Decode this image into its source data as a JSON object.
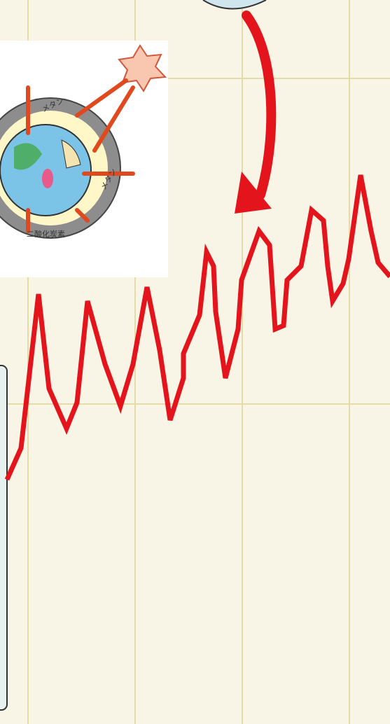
{
  "illustration": {
    "labels": [
      "メタン",
      "メタン",
      "二酸化炭素"
    ]
  }
}
